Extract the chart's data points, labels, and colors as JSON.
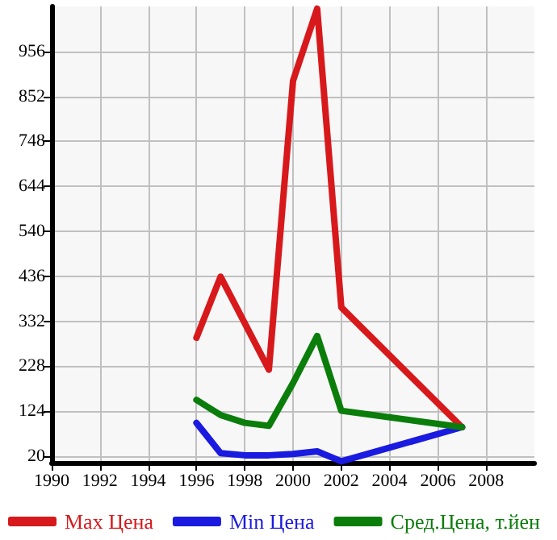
{
  "chart_data": {
    "type": "line",
    "x": [
      1996,
      1997,
      1998,
      1999,
      2000,
      2001,
      2002,
      2007
    ],
    "series": [
      {
        "name": "Max Цена",
        "color": "#d7191c",
        "values": [
          294,
          435,
          null,
          220,
          888,
          1055,
          364,
          87
        ],
        "x": [
          1996,
          1997,
          1998,
          1999,
          2000,
          2001,
          2002,
          2007
        ]
      },
      {
        "name": "Min Цена",
        "color": "#1a1ae0",
        "values": [
          97,
          27,
          22,
          22,
          25,
          31,
          8,
          87
        ]
      },
      {
        "name": "Сред.Цена, т.йен",
        "color": "#0a7d0a",
        "values": [
          150,
          115,
          97,
          90,
          189,
          298,
          125,
          87
        ]
      }
    ],
    "xlim": [
      1990,
      2010
    ],
    "xticks": [
      1990,
      1992,
      1994,
      1996,
      1998,
      2000,
      2002,
      2004,
      2006,
      2008
    ],
    "ylim": [
      5,
      1060
    ],
    "yticks": [
      20,
      124,
      228,
      332,
      436,
      540,
      644,
      748,
      852,
      956
    ],
    "grid": true,
    "legend": "bottom",
    "marker": "none",
    "line_style": "solid"
  }
}
